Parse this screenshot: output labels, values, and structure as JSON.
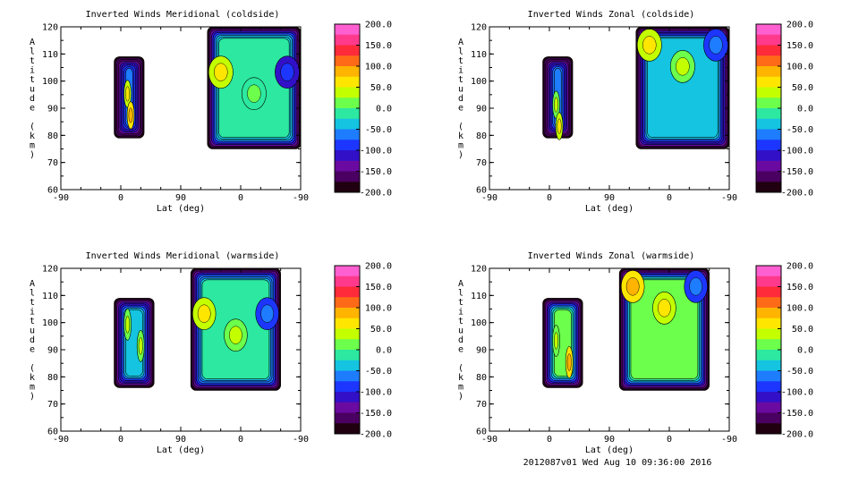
{
  "footer": "2012087v01 Wed Aug 10 09:36:00 2016",
  "colorbar": {
    "ticks": [
      200,
      150,
      100,
      50,
      0,
      -50,
      -100,
      -150,
      -200
    ],
    "tick_labels": [
      "200.0",
      "150.0",
      "100.0",
      "50.0",
      "0.0",
      "-50.0",
      "-100.0",
      "-150.0",
      "-200.0"
    ],
    "range": [
      -200,
      200
    ],
    "colors": [
      "#ff5fd0",
      "#ff3a8c",
      "#ff2a3a",
      "#ff6a18",
      "#ffb400",
      "#ffe600",
      "#c4ff00",
      "#6cff4c",
      "#2ce8a0",
      "#14c4e0",
      "#1e7cff",
      "#1c36ff",
      "#3210c8",
      "#6a0aa0",
      "#4a0060",
      "#200010"
    ]
  },
  "chart_data": [
    {
      "type": "contour",
      "title": "Inverted Winds Meridional (coldside)",
      "xlabel": "Lat (deg)",
      "ylabel": "Altitude (km)",
      "x_tick_labels": [
        "-90",
        "0",
        "90",
        "0",
        "-90"
      ],
      "y_tick_labels": [
        "60",
        "70",
        "80",
        "90",
        "100",
        "110",
        "120"
      ],
      "ylim": [
        60,
        120
      ],
      "blobs": [
        {
          "lat_start": -10,
          "lat_end": 35,
          "alt_bottom": 79,
          "alt_top": 109,
          "value": -60,
          "hot_min": 0,
          "hot_max": 60,
          "hot_alt": 92
        },
        {
          "lat_start": 130,
          "lat_end": 270,
          "alt_bottom": 75,
          "alt_top": 120,
          "value": -5,
          "hot_min": -120,
          "hot_max": 40,
          "hot_alt": 100
        }
      ]
    },
    {
      "type": "contour",
      "title": "Inverted Winds Zonal (coldside)",
      "xlabel": "Lat (deg)",
      "ylabel": "Altitude (km)",
      "x_tick_labels": [
        "-90",
        "0",
        "90",
        "0",
        "-90"
      ],
      "y_tick_labels": [
        "60",
        "70",
        "80",
        "90",
        "100",
        "110",
        "120"
      ],
      "ylim": [
        60,
        120
      ],
      "blobs": [
        {
          "lat_start": -10,
          "lat_end": 35,
          "alt_bottom": 79,
          "alt_top": 109,
          "value": -50,
          "hot_min": -20,
          "hot_max": 50,
          "hot_alt": 88
        },
        {
          "lat_start": 130,
          "lat_end": 270,
          "alt_bottom": 75,
          "alt_top": 120,
          "value": -30,
          "hot_min": -90,
          "hot_max": 50,
          "hot_alt": 110
        }
      ]
    },
    {
      "type": "contour",
      "title": "Inverted Winds Meridional (warmside)",
      "xlabel": "Lat (deg)",
      "ylabel": "Altitude (km)",
      "x_tick_labels": [
        "-90",
        "0",
        "90",
        "0",
        "-90"
      ],
      "y_tick_labels": [
        "60",
        "70",
        "80",
        "90",
        "100",
        "110",
        "120"
      ],
      "ylim": [
        60,
        120
      ],
      "blobs": [
        {
          "lat_start": -10,
          "lat_end": 50,
          "alt_bottom": 76,
          "alt_top": 109,
          "value": -30,
          "hot_min": 0,
          "hot_max": 20,
          "hot_alt": 96
        },
        {
          "lat_start": 105,
          "lat_end": 240,
          "alt_bottom": 75,
          "alt_top": 120,
          "value": -10,
          "hot_min": -100,
          "hot_max": 60,
          "hot_alt": 100
        }
      ]
    },
    {
      "type": "contour",
      "title": "Inverted Winds Zonal (warmside)",
      "xlabel": "Lat (deg)",
      "ylabel": "Altitude (km)",
      "x_tick_labels": [
        "-90",
        "0",
        "90",
        "0",
        "-90"
      ],
      "y_tick_labels": [
        "60",
        "70",
        "80",
        "90",
        "100",
        "110",
        "120"
      ],
      "ylim": [
        60,
        120
      ],
      "blobs": [
        {
          "lat_start": -10,
          "lat_end": 50,
          "alt_bottom": 76,
          "alt_top": 109,
          "value": 10,
          "hot_min": -20,
          "hot_max": 60,
          "hot_alt": 90
        },
        {
          "lat_start": 105,
          "lat_end": 240,
          "alt_bottom": 75,
          "alt_top": 120,
          "value": 20,
          "hot_min": -80,
          "hot_max": 80,
          "hot_alt": 110
        }
      ]
    }
  ]
}
